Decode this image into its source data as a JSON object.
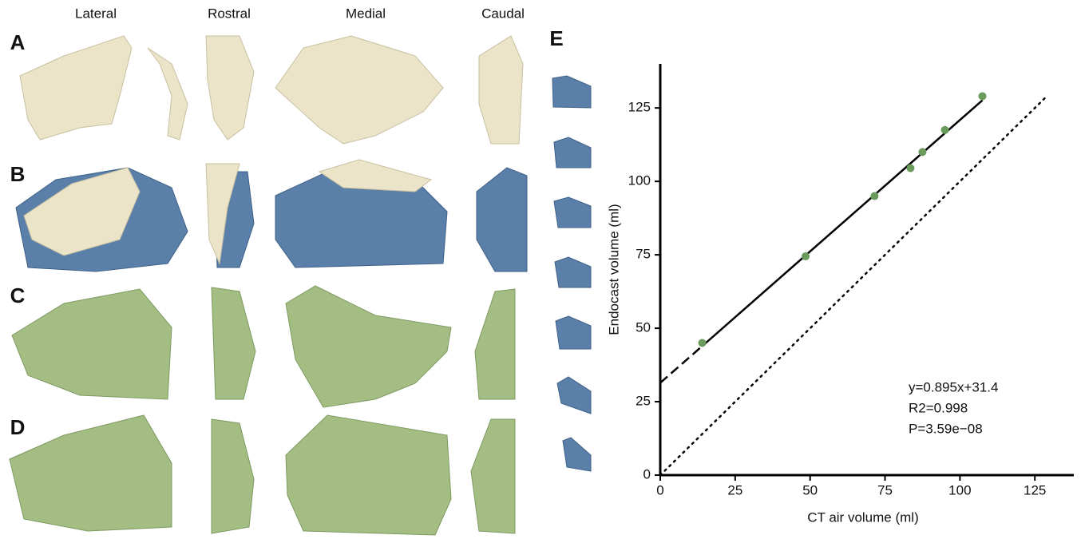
{
  "figure": {
    "column_labels": [
      "Lateral",
      "Rostral",
      "Medial",
      "Caudal"
    ],
    "row_labels": [
      "A",
      "B",
      "C",
      "D"
    ]
  },
  "chart_data": {
    "type": "scatter",
    "panel_label": "E",
    "x_label": "CT air volume (ml)",
    "y_label": "Endocast volume (ml)",
    "x": [
      14,
      48.5,
      71.5,
      83.5,
      87.5,
      95,
      107.5
    ],
    "values": [
      45,
      74.5,
      95,
      104.5,
      110,
      117.5,
      129
    ],
    "color": "#6a9a5c",
    "xlim": [
      0,
      138
    ],
    "ylim": [
      0,
      140
    ],
    "xticks": [
      0,
      25,
      50,
      75,
      100,
      125
    ],
    "yticks": [
      0,
      25,
      50,
      75,
      100,
      125
    ],
    "fit": {
      "slope": 0.895,
      "intercept": 31.4
    },
    "identity_line": true,
    "annotations": [
      "y=0.895x+31.4",
      "R2=0.998",
      "P=3.59e−08"
    ]
  }
}
